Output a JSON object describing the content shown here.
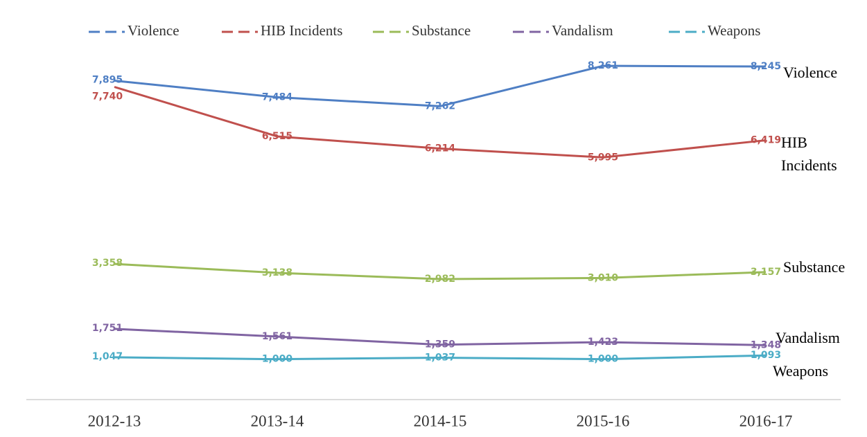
{
  "chart_data": {
    "type": "line",
    "categories": [
      "2012-13",
      "2013-14",
      "2014-15",
      "2015-16",
      "2016-17"
    ],
    "series": [
      {
        "name": "Violence",
        "color": "#4f7fc4",
        "values": [
          7895,
          7484,
          7262,
          8261,
          8245
        ],
        "value_labels": [
          "7,895",
          "7,484",
          "7,262",
          "8,261",
          "8,245"
        ]
      },
      {
        "name": "HIB Incidents",
        "color": "#c0504d",
        "values": [
          7740,
          6515,
          6214,
          5995,
          6419
        ],
        "value_labels": [
          "7,740",
          "6,515",
          "6,214",
          "5,995",
          "6,419"
        ]
      },
      {
        "name": "Substance",
        "color": "#9bbb59",
        "values": [
          3358,
          3138,
          2982,
          3010,
          3157
        ],
        "value_labels": [
          "3,358",
          "3,138",
          "2,982",
          "3,010",
          "3,157"
        ]
      },
      {
        "name": "Vandalism",
        "color": "#8064a2",
        "values": [
          1751,
          1561,
          1359,
          1423,
          1348
        ],
        "value_labels": [
          "1,751",
          "1,561",
          "1,359",
          "1,423",
          "1,348"
        ]
      },
      {
        "name": "Weapons",
        "color": "#4bacc6",
        "values": [
          1047,
          1000,
          1037,
          1000,
          1093
        ],
        "value_labels": [
          "1,047",
          "1,000",
          "1,037",
          "1,000",
          "1,093"
        ]
      }
    ],
    "ylim": [
      0,
      9000
    ],
    "legend": "top"
  }
}
